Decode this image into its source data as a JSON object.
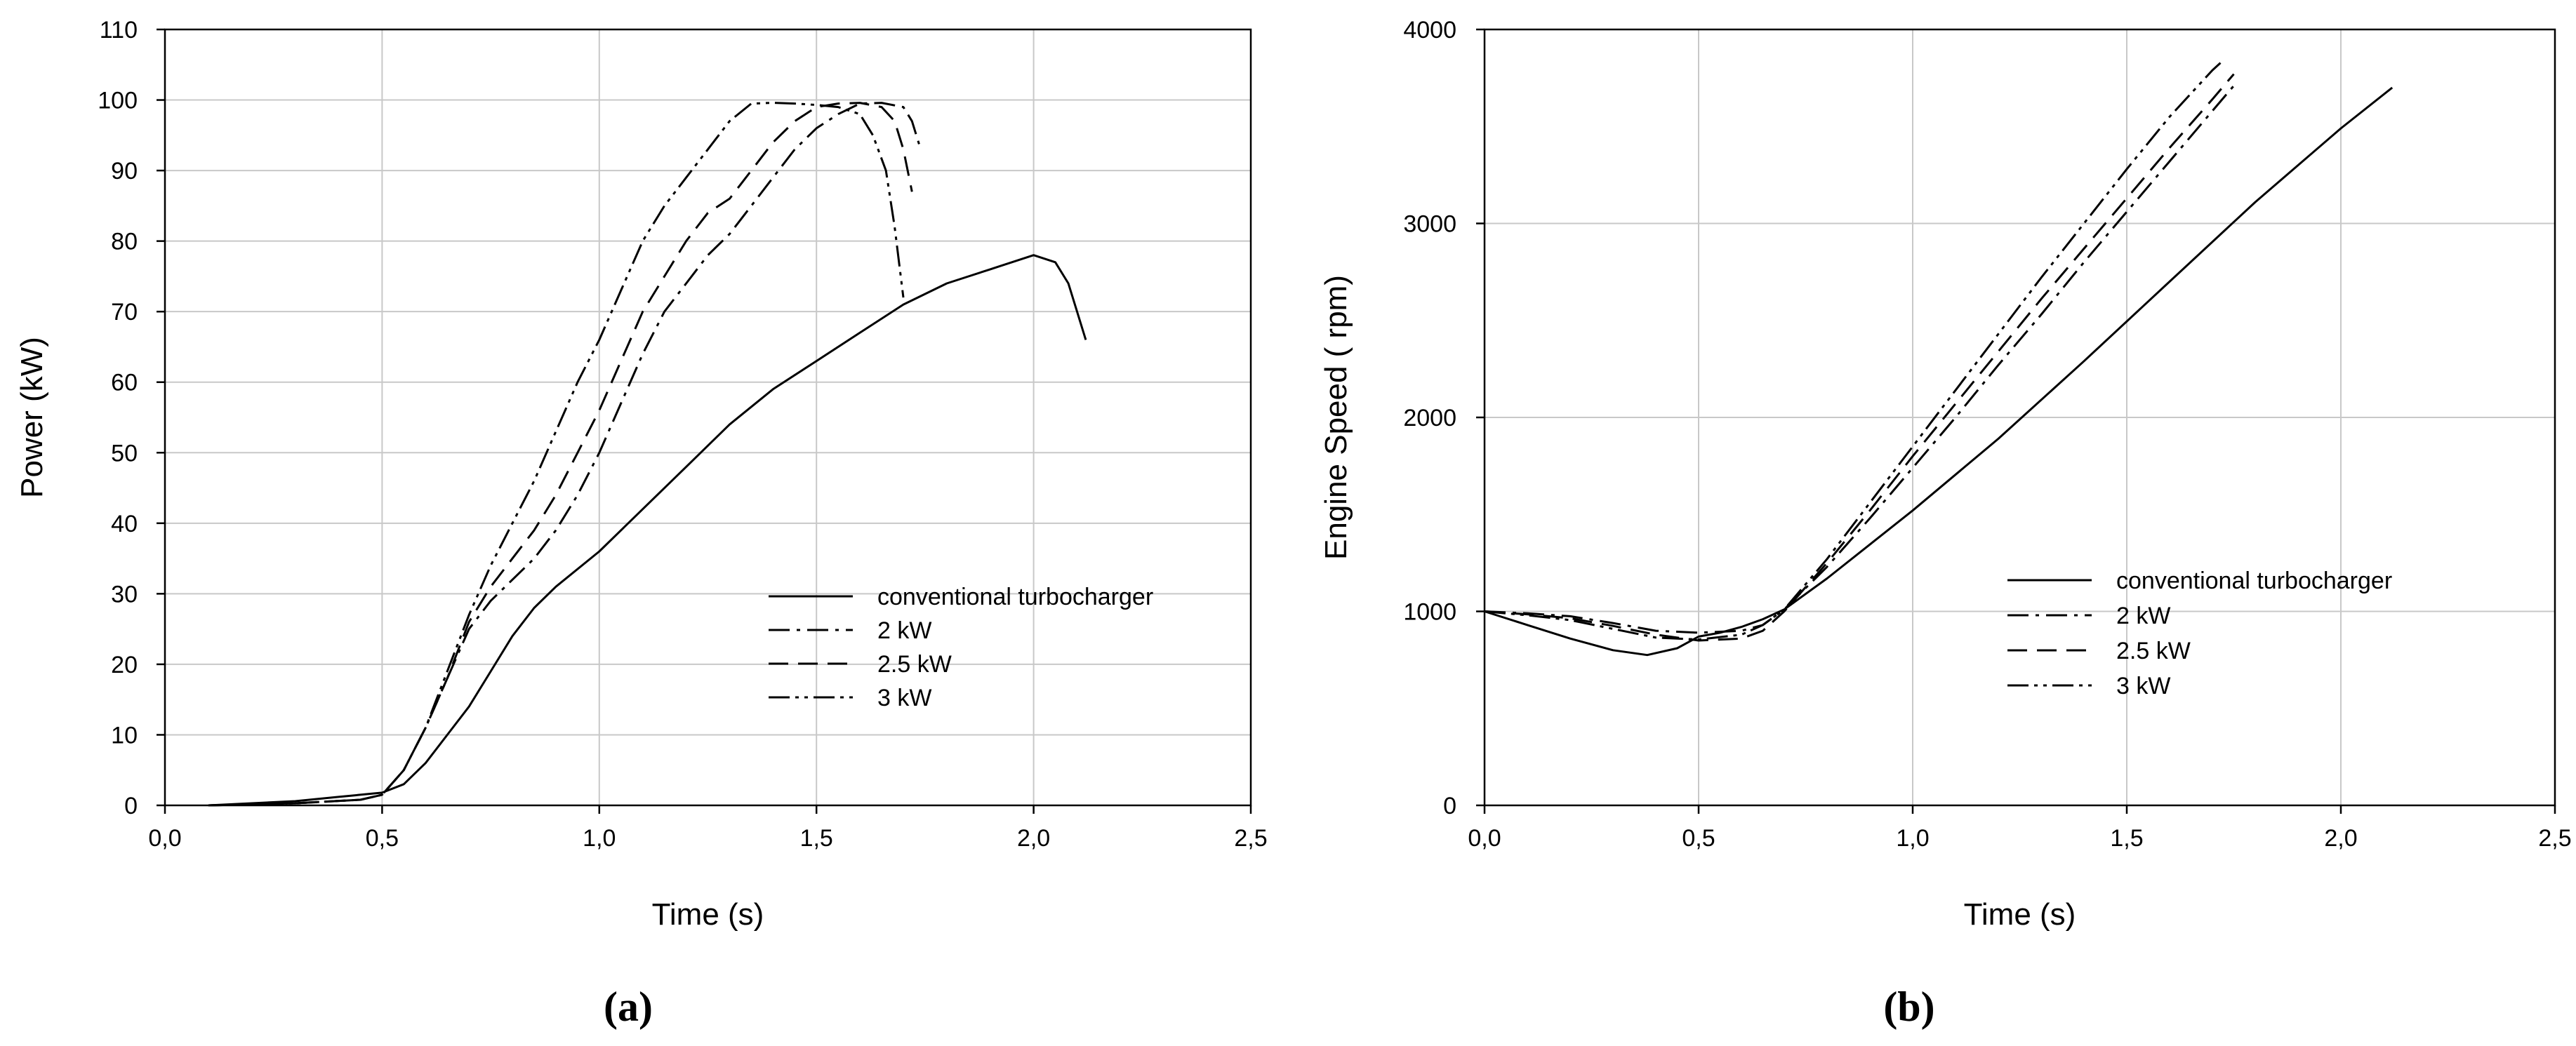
{
  "chart_data": [
    {
      "type": "line",
      "panel_label": "(a)",
      "title": "",
      "xlabel": "Time (s)",
      "ylabel": "Power (kW)",
      "xlim": [
        0,
        2.5
      ],
      "ylim": [
        0,
        110
      ],
      "xticks": [
        "0,0",
        "0,5",
        "1,0",
        "1,5",
        "2,0",
        "2,5"
      ],
      "yticks": [
        "0",
        "10",
        "20",
        "30",
        "40",
        "50",
        "60",
        "70",
        "80",
        "90",
        "100",
        "110"
      ],
      "grid": true,
      "legend_position": "bottom-right",
      "series": [
        {
          "name": "conventional turbocharger",
          "dash": "solid",
          "x": [
            0.1,
            0.2,
            0.3,
            0.4,
            0.5,
            0.55,
            0.6,
            0.65,
            0.7,
            0.75,
            0.8,
            0.85,
            0.9,
            1.0,
            1.1,
            1.2,
            1.3,
            1.4,
            1.5,
            1.6,
            1.7,
            1.8,
            1.9,
            2.0,
            2.05,
            2.08,
            2.1,
            2.12
          ],
          "y": [
            0,
            0.3,
            0.6,
            1.2,
            1.8,
            3,
            6,
            10,
            14,
            19,
            24,
            28,
            31,
            36,
            42,
            48,
            54,
            59,
            63,
            67,
            71,
            74,
            76,
            78,
            77,
            74,
            70,
            66
          ]
        },
        {
          "name": "2 kW",
          "dash": "dashdot",
          "x": [
            0.1,
            0.3,
            0.45,
            0.5,
            0.55,
            0.6,
            0.65,
            0.7,
            0.75,
            0.8,
            0.85,
            0.9,
            0.95,
            1.0,
            1.05,
            1.1,
            1.15,
            1.2,
            1.25,
            1.3,
            1.35,
            1.4,
            1.45,
            1.5,
            1.55,
            1.6,
            1.65,
            1.7,
            1.72,
            1.74
          ],
          "y": [
            0,
            0.3,
            0.8,
            1.5,
            5,
            11,
            18,
            25,
            29,
            32,
            35,
            39,
            44,
            50,
            57,
            64,
            70,
            74,
            78,
            81,
            85,
            89,
            93,
            96,
            98,
            99.5,
            99.6,
            99,
            97,
            93
          ]
        },
        {
          "name": "2.5 kW",
          "dash": "dashed",
          "x": [
            0.1,
            0.3,
            0.45,
            0.5,
            0.55,
            0.6,
            0.65,
            0.7,
            0.75,
            0.8,
            0.85,
            0.9,
            0.95,
            1.0,
            1.05,
            1.1,
            1.15,
            1.2,
            1.25,
            1.3,
            1.35,
            1.4,
            1.45,
            1.5,
            1.55,
            1.6,
            1.65,
            1.68,
            1.7,
            1.72
          ],
          "y": [
            0,
            0.3,
            0.8,
            1.5,
            5,
            11,
            18,
            26,
            31,
            35,
            39,
            44,
            50,
            56,
            63,
            70,
            75,
            80,
            84,
            86,
            90,
            94,
            97,
            99,
            99.5,
            99.6,
            99,
            97,
            93,
            87
          ]
        },
        {
          "name": "3 kW",
          "dash": "dashdotdot",
          "x": [
            0.1,
            0.3,
            0.45,
            0.5,
            0.55,
            0.6,
            0.65,
            0.7,
            0.75,
            0.8,
            0.85,
            0.9,
            0.95,
            1.0,
            1.05,
            1.1,
            1.15,
            1.2,
            1.25,
            1.3,
            1.35,
            1.4,
            1.45,
            1.5,
            1.55,
            1.6,
            1.63,
            1.66,
            1.68,
            1.7
          ],
          "y": [
            0,
            0.3,
            0.8,
            1.5,
            5,
            11,
            19,
            27,
            34,
            40,
            46,
            53,
            60,
            66,
            73,
            80,
            85,
            89,
            93,
            97,
            99.5,
            99.6,
            99.5,
            99.3,
            99,
            98,
            95,
            90,
            82,
            72
          ]
        }
      ]
    },
    {
      "type": "line",
      "panel_label": "(b)",
      "title": "",
      "xlabel": "Time (s)",
      "ylabel": "Engine Speed ( rpm)",
      "xlim": [
        0,
        2.5
      ],
      "ylim": [
        0,
        4000
      ],
      "xticks": [
        "0,0",
        "0,5",
        "1,0",
        "1,5",
        "2,0",
        "2,5"
      ],
      "yticks": [
        "0",
        "1000",
        "2000",
        "3000",
        "4000"
      ],
      "grid": true,
      "legend_position": "bottom-right",
      "series": [
        {
          "name": "conventional turbocharger",
          "dash": "solid",
          "x": [
            0.0,
            0.1,
            0.2,
            0.3,
            0.38,
            0.45,
            0.5,
            0.55,
            0.6,
            0.65,
            0.7,
            0.8,
            1.0,
            1.2,
            1.4,
            1.6,
            1.8,
            2.0,
            2.12
          ],
          "y": [
            1000,
            930,
            860,
            800,
            775,
            810,
            870,
            890,
            920,
            960,
            1010,
            1170,
            1520,
            1890,
            2290,
            2700,
            3110,
            3490,
            3700
          ]
        },
        {
          "name": "2 kW",
          "dash": "dashdot",
          "x": [
            0.0,
            0.1,
            0.2,
            0.3,
            0.4,
            0.5,
            0.6,
            0.65,
            0.7,
            0.8,
            0.9,
            1.0,
            1.1,
            1.2,
            1.3,
            1.4,
            1.5,
            1.6,
            1.7,
            1.75
          ],
          "y": [
            1000,
            990,
            975,
            940,
            900,
            890,
            900,
            930,
            1010,
            1230,
            1480,
            1740,
            2000,
            2270,
            2530,
            2800,
            3060,
            3320,
            3580,
            3710
          ]
        },
        {
          "name": "2.5 kW",
          "dash": "dashed",
          "x": [
            0.0,
            0.1,
            0.2,
            0.3,
            0.4,
            0.5,
            0.6,
            0.65,
            0.7,
            0.8,
            0.9,
            1.0,
            1.1,
            1.2,
            1.3,
            1.4,
            1.5,
            1.6,
            1.7,
            1.75
          ],
          "y": [
            1000,
            985,
            965,
            925,
            880,
            850,
            860,
            900,
            1000,
            1250,
            1520,
            1800,
            2070,
            2340,
            2610,
            2870,
            3130,
            3390,
            3640,
            3770
          ]
        },
        {
          "name": "3 kW",
          "dash": "dashdotdot",
          "x": [
            0.0,
            0.1,
            0.2,
            0.3,
            0.4,
            0.5,
            0.6,
            0.65,
            0.7,
            0.8,
            0.9,
            1.0,
            1.1,
            1.2,
            1.3,
            1.4,
            1.5,
            1.6,
            1.7,
            1.72
          ],
          "y": [
            1000,
            980,
            955,
            910,
            865,
            855,
            880,
            930,
            1010,
            1270,
            1560,
            1850,
            2140,
            2430,
            2720,
            3000,
            3280,
            3550,
            3790,
            3830
          ]
        }
      ]
    }
  ]
}
